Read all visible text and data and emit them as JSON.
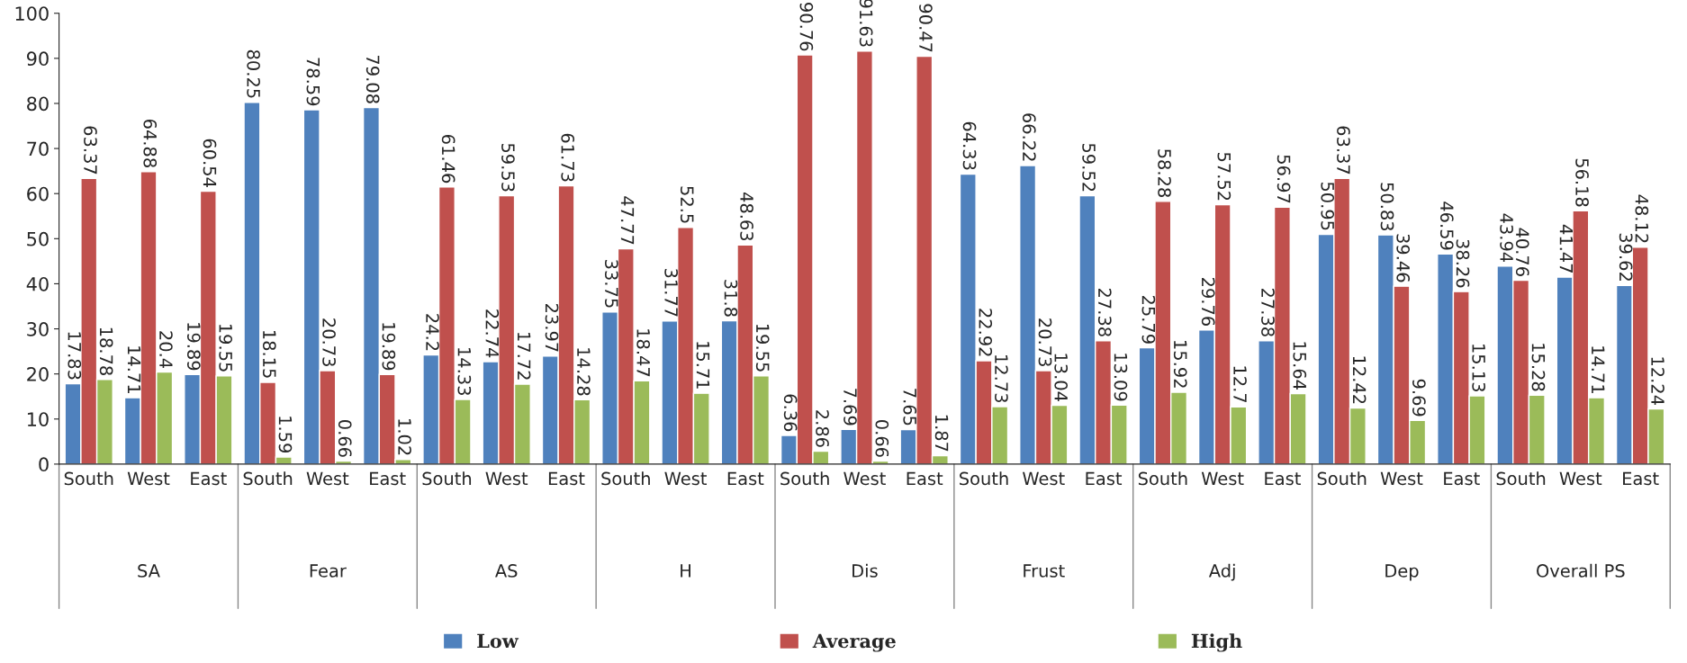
{
  "chart_data": {
    "type": "bar",
    "categories": [
      "South",
      "West",
      "East",
      "South",
      "West",
      "East",
      "South",
      "West",
      "East",
      "South",
      "West",
      "East",
      "South",
      "West",
      "East",
      "South",
      "West",
      "East",
      "South",
      "West",
      "East",
      "South",
      "West",
      "East",
      "South",
      "West",
      "East"
    ],
    "annotations": [
      "SA",
      "Fear",
      "AS",
      "H",
      "Dis",
      "Frust",
      "Adj",
      "Dep",
      "Overall PS"
    ],
    "series": [
      {
        "name": "Low",
        "color": "#4f81bd",
        "values": [
          17.83,
          14.71,
          19.89,
          80.25,
          78.59,
          79.08,
          24.2,
          22.74,
          23.97,
          33.75,
          31.77,
          31.8,
          6.36,
          7.69,
          7.65,
          64.33,
          66.22,
          59.52,
          25.79,
          29.76,
          27.38,
          50.95,
          50.83,
          46.59,
          43.94,
          41.47,
          39.62
        ]
      },
      {
        "name": "Average",
        "color": "#c0504d",
        "values": [
          63.37,
          64.88,
          60.54,
          18.15,
          20.73,
          19.89,
          61.46,
          59.53,
          61.73,
          47.77,
          52.5,
          48.63,
          90.76,
          91.63,
          90.47,
          22.92,
          20.73,
          27.38,
          58.28,
          57.52,
          56.97,
          63.37,
          39.46,
          38.26,
          40.76,
          56.18,
          48.12
        ]
      },
      {
        "name": "High",
        "color": "#9bbb59",
        "values": [
          18.78,
          20.4,
          19.55,
          1.59,
          0.66,
          1.02,
          14.33,
          17.72,
          14.28,
          18.47,
          15.71,
          19.55,
          2.86,
          0.66,
          1.87,
          12.73,
          13.04,
          13.09,
          15.92,
          12.7,
          15.64,
          12.42,
          9.69,
          15.13,
          15.28,
          14.71,
          12.24
        ]
      }
    ],
    "ylim": [
      0,
      100
    ],
    "yticks": [
      0,
      10,
      20,
      30,
      40,
      50,
      60,
      70,
      80,
      90,
      100
    ],
    "data_labels": true,
    "legend": "bottom",
    "grid": false
  }
}
